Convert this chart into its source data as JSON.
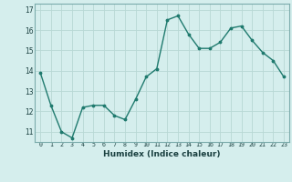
{
  "x": [
    0,
    1,
    2,
    3,
    4,
    5,
    6,
    7,
    8,
    9,
    10,
    11,
    12,
    13,
    14,
    15,
    16,
    17,
    18,
    19,
    20,
    21,
    22,
    23
  ],
  "y": [
    13.9,
    12.3,
    11.0,
    10.7,
    12.2,
    12.3,
    12.3,
    11.8,
    11.6,
    12.6,
    13.7,
    14.1,
    16.5,
    16.7,
    15.8,
    15.1,
    15.1,
    15.4,
    16.1,
    16.2,
    15.5,
    14.9,
    14.5,
    13.7
  ],
  "xlabel": "Humidex (Indice chaleur)",
  "ylim": [
    10.5,
    17.3
  ],
  "xlim": [
    -0.5,
    23.5
  ],
  "yticks": [
    11,
    12,
    13,
    14,
    15,
    16,
    17
  ],
  "xtick_labels": [
    "0",
    "1",
    "2",
    "3",
    "4",
    "5",
    "6",
    "7",
    "8",
    "9",
    "10",
    "11",
    "12",
    "13",
    "14",
    "15",
    "16",
    "17",
    "18",
    "19",
    "20",
    "21",
    "22",
    "23"
  ],
  "line_color": "#1f7a6e",
  "marker_color": "#1f7a6e",
  "bg_color": "#d5eeed",
  "grid_color": "#b8d8d5"
}
